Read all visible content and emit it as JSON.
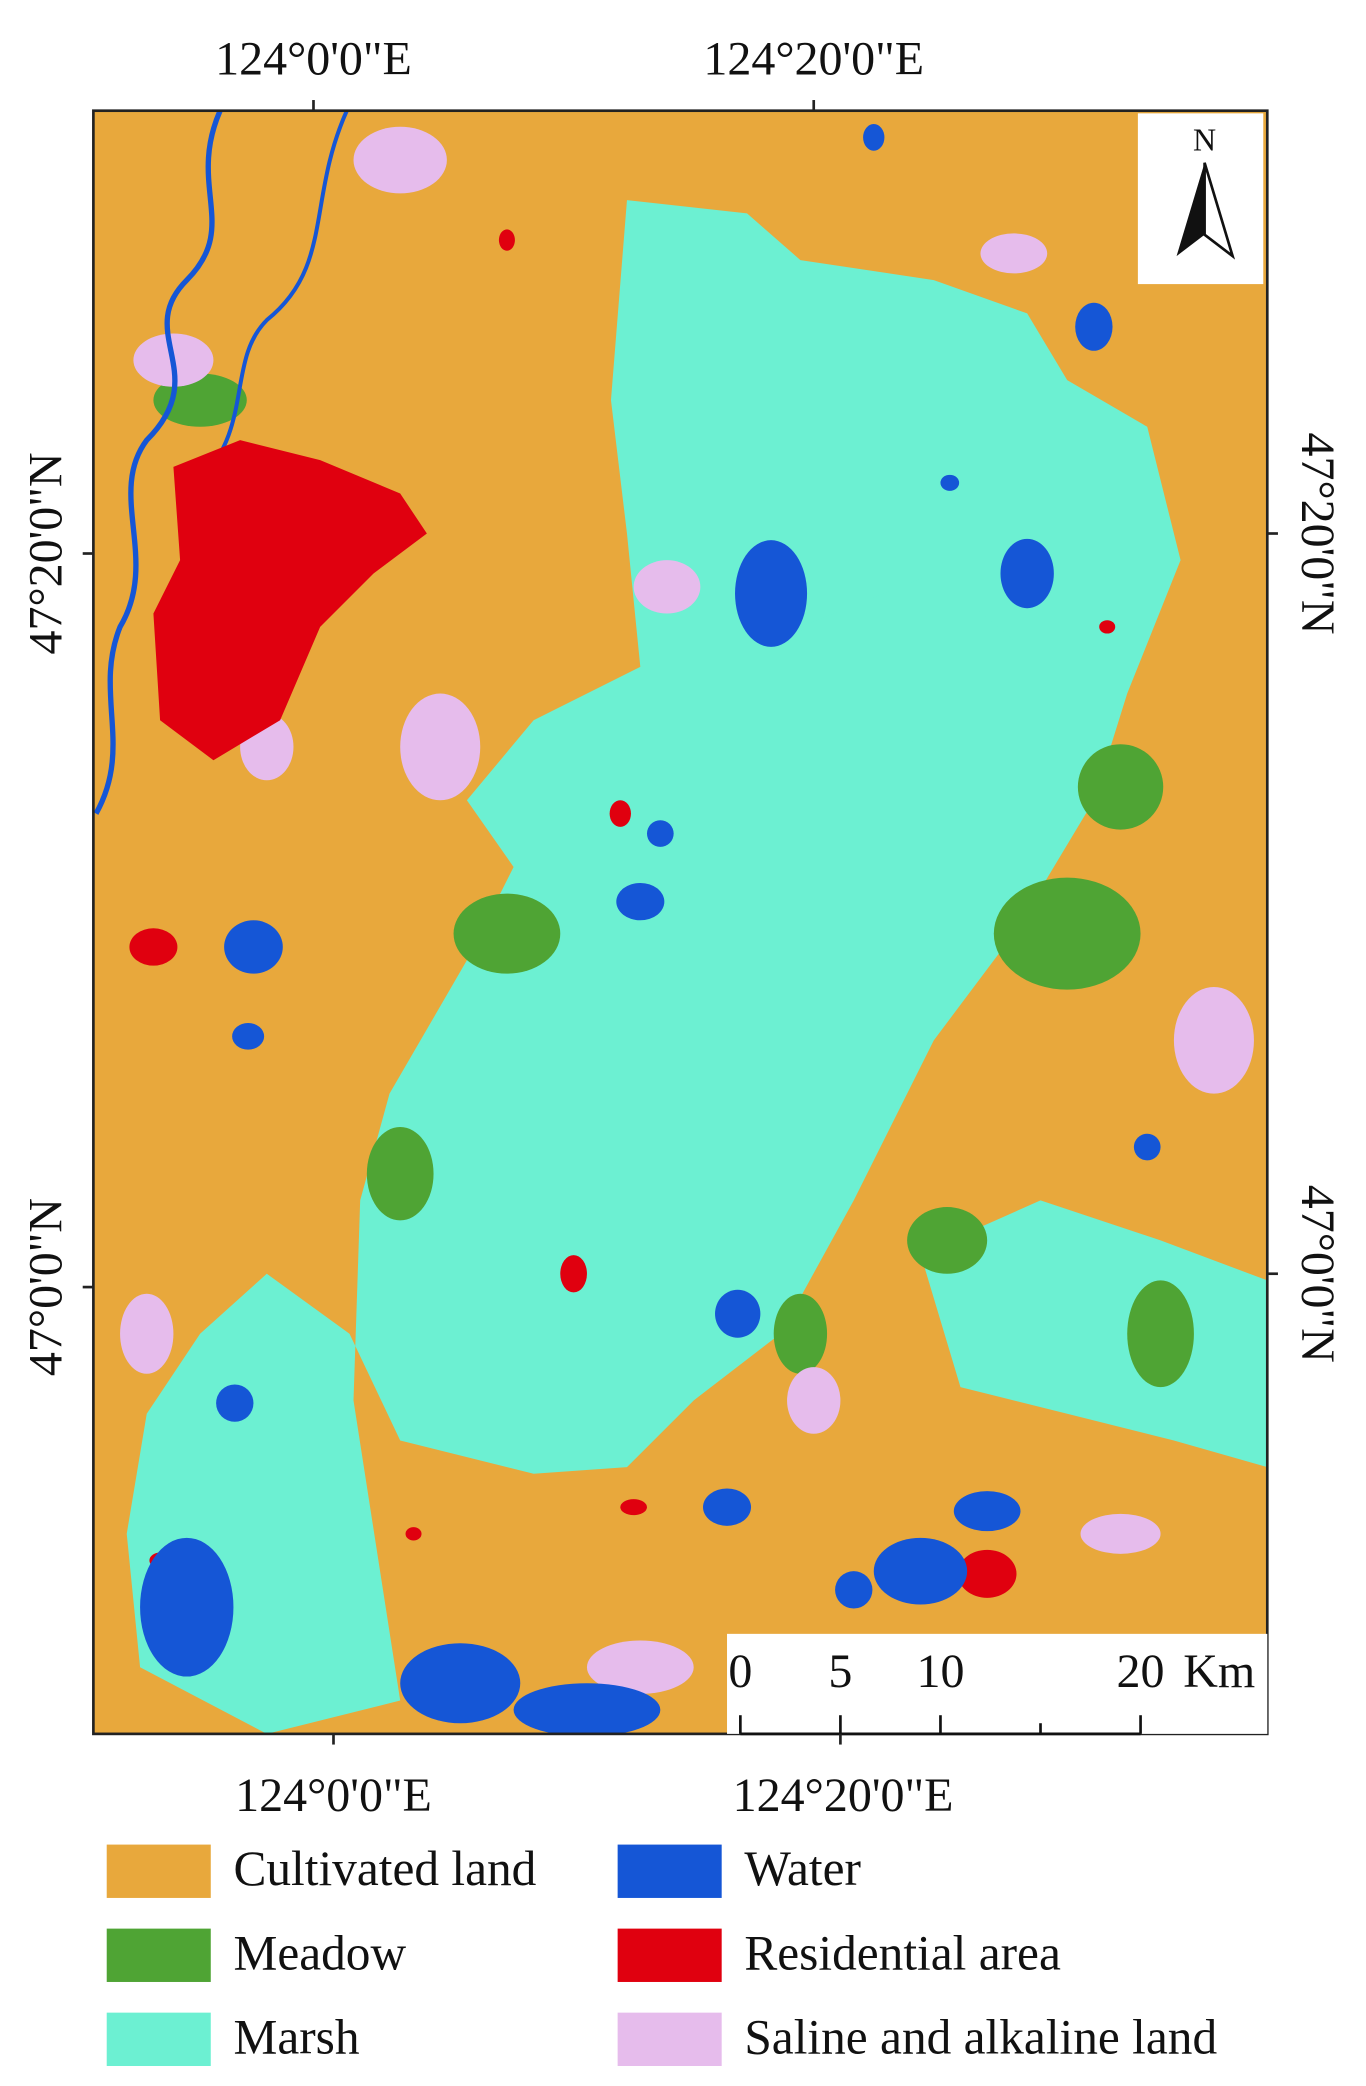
{
  "map": {
    "top_labels": [
      "124°0'0\"E",
      "124°20'0\"E"
    ],
    "bottom_labels": [
      "124°0'0\"E",
      "124°20'0\"E"
    ],
    "left_labels": [
      "47°20'0\"N",
      "47°0'0\"N"
    ],
    "right_labels": [
      "47°20'0\"N",
      "47°0'0\"N"
    ],
    "north_label": "N",
    "scale_bar": {
      "labels": [
        "0",
        "5",
        "10",
        "20"
      ],
      "unit": "Km"
    }
  },
  "legend": [
    {
      "label": "Cultivated land",
      "color": "#e8a83c"
    },
    {
      "label": "Meadow",
      "color": "#4fa434"
    },
    {
      "label": "Marsh",
      "color": "#6cf0d2"
    },
    {
      "label": "Water",
      "color": "#1556d6"
    },
    {
      "label": "Residential area",
      "color": "#e0000f"
    },
    {
      "label": "Saline and alkaline land",
      "color": "#e6bcec"
    }
  ]
}
